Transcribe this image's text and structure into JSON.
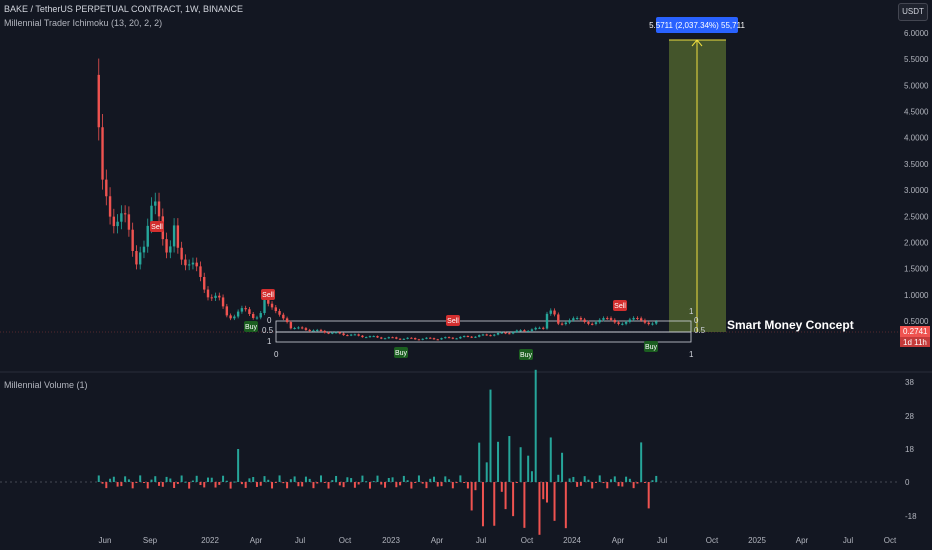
{
  "header": {
    "title": "BAKE / TetherUS PERPETUAL CONTRACT, 1W, BINANCE",
    "indicator": "Millennial Trader Ichimoku (13, 20, 2, 2)",
    "currency_button": "USDT"
  },
  "volume_pane": {
    "title": "Millennial Volume (1)"
  },
  "colors": {
    "up": "#26a69a",
    "down": "#ef5350",
    "bg": "#131722",
    "projection": "#556b2f",
    "measure_line": "#f0e040",
    "label_blue": "#2962ff"
  },
  "price_axis": {
    "ticks": [
      "6.0000",
      "5.5000",
      "5.0000",
      "4.5000",
      "4.0000",
      "3.5000",
      "3.0000",
      "2.5000",
      "2.0000",
      "1.5000",
      "1.0000",
      "0.5000"
    ],
    "current_price": "0.2741",
    "countdown": "1d 11h"
  },
  "volume_axis": {
    "ticks": [
      "38",
      "28",
      "18",
      "0",
      "-18"
    ]
  },
  "time_axis": {
    "labels": [
      "Jun",
      "Sep",
      "2022",
      "Apr",
      "Jul",
      "Oct",
      "2023",
      "Apr",
      "Jul",
      "Oct",
      "2024",
      "Apr",
      "Jul",
      "Oct",
      "2025",
      "Apr",
      "Jul",
      "Oct"
    ]
  },
  "annotations": {
    "measure_label": "5.5711 (2,037.34%) 55,711",
    "smc_label": "Smart Money Concept",
    "signals": [
      {
        "type": "sell",
        "text": "Sell"
      },
      {
        "type": "buy",
        "text": "Buy"
      },
      {
        "type": "sell",
        "text": "Sell"
      },
      {
        "type": "sell",
        "text": "Sell"
      },
      {
        "type": "buy",
        "text": "Buy"
      },
      {
        "type": "buy",
        "text": "Buy"
      },
      {
        "type": "sell",
        "text": "Sell"
      },
      {
        "type": "buy",
        "text": "Buy"
      }
    ],
    "fib_left": [
      "0",
      "0.5",
      "1"
    ],
    "fib_left_bottom": "0",
    "fib_right": [
      "1",
      "0",
      "0.5"
    ],
    "fib_right_bottom": "1"
  }
}
